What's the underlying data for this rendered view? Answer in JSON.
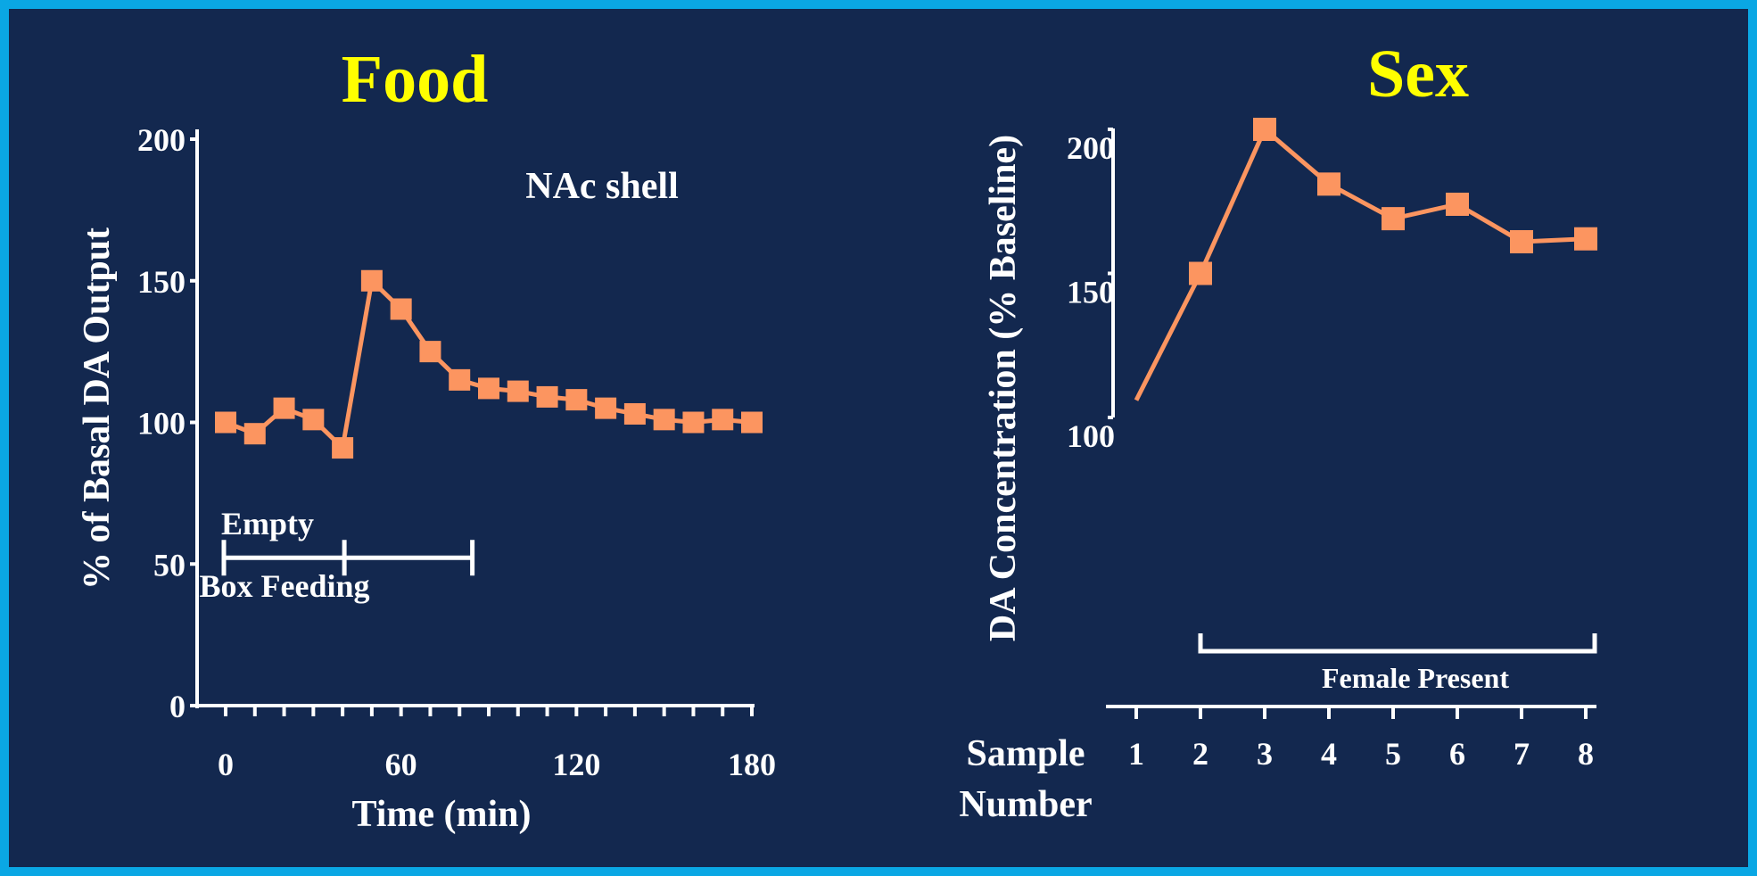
{
  "chart_data": [
    {
      "type": "line",
      "title": "Food",
      "xlabel": "Time (min)",
      "ylabel": "% of Basal DA Output",
      "xlim": [
        0,
        180
      ],
      "ylim": [
        0,
        200
      ],
      "x_ticks": [
        0,
        60,
        120,
        180
      ],
      "y_ticks": [
        0,
        50,
        100,
        150,
        200
      ],
      "annotation": "NAc shell",
      "series": [
        {
          "x": [
            0,
            10,
            20,
            30,
            40,
            50,
            60,
            70,
            80,
            90,
            100,
            110,
            120,
            130,
            140,
            150,
            160,
            170,
            180
          ],
          "values": [
            100,
            96,
            105,
            101,
            91,
            150,
            140,
            125,
            115,
            112,
            111,
            109,
            108,
            105,
            103,
            101,
            100,
            101,
            100
          ]
        }
      ],
      "phases": [
        {
          "label": "Empty",
          "start": 0,
          "end": 40
        },
        {
          "label": "Box Feeding",
          "start": 40,
          "end": 85
        }
      ],
      "phase_label_top": "Empty",
      "phase_label_bottom": "Box Feeding"
    },
    {
      "type": "line",
      "title": "Sex",
      "xlabel": "Sample Number",
      "ylabel": "DA Concentration (% Baseline)",
      "ylim": [
        100,
        200
      ],
      "x_ticks": [
        1,
        2,
        3,
        4,
        5,
        6,
        7,
        8
      ],
      "y_ticks": [
        100,
        150,
        200
      ],
      "series": [
        {
          "x": [
            1,
            2,
            3,
            4,
            5,
            6,
            7,
            8
          ],
          "values": [
            106,
            150,
            200,
            181,
            169,
            174,
            161,
            162
          ],
          "markers": [
            false,
            true,
            true,
            true,
            true,
            true,
            true,
            true
          ]
        }
      ],
      "bracket": {
        "label": "Female  Present",
        "start": 2,
        "end": 8
      }
    }
  ],
  "colors": {
    "background": "#13284f",
    "border": "#0aa7e4",
    "title": "#ffff00",
    "series": "#fc9560",
    "text": "#ffffff"
  }
}
